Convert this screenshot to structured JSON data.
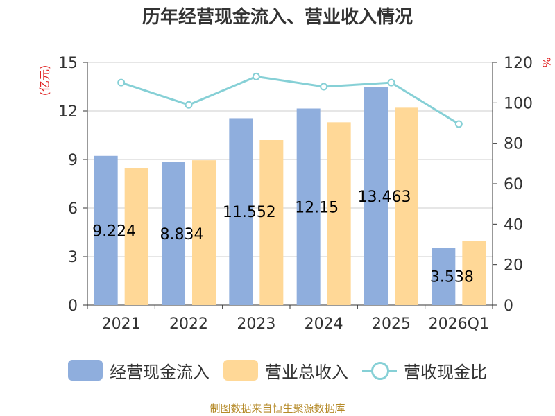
{
  "title": "历年经营现金流入、营业收入情况",
  "source": "制图数据来自恒生聚源数据库",
  "colors": {
    "cash_inflow": "#8faedd",
    "revenue": "#ffd897",
    "ratio_line": "#86d0d6",
    "axis_unit": "#e02020",
    "text": "#333333"
  },
  "chart_data": {
    "type": "bar",
    "categories": [
      "2021",
      "2022",
      "2023",
      "2024",
      "2025",
      "2026Q1"
    ],
    "series": [
      {
        "name": "经营现金流入",
        "type": "bar",
        "axis": "left",
        "values": [
          9.224,
          8.834,
          11.552,
          12.15,
          13.463,
          3.538
        ],
        "labels": [
          "9.224",
          "8.834",
          "11.552",
          "12.15",
          "13.463",
          "3.538"
        ]
      },
      {
        "name": "营业总收入",
        "type": "bar",
        "axis": "left",
        "values": [
          8.45,
          8.95,
          10.2,
          11.3,
          12.2,
          3.95
        ]
      },
      {
        "name": "营收现金比",
        "type": "line",
        "axis": "right",
        "values": [
          110,
          99,
          113,
          108,
          110,
          89.5
        ]
      }
    ],
    "yleft": {
      "unit": "(亿元)",
      "ticks": [
        "0",
        "3",
        "6",
        "9",
        "12",
        "15"
      ],
      "ylim": [
        0,
        15
      ]
    },
    "yright": {
      "unit": "%",
      "ticks": [
        "0",
        "20",
        "40",
        "60",
        "80",
        "100",
        "120"
      ],
      "ylim": [
        0,
        120
      ]
    },
    "grid": true,
    "legend_position": "bottom"
  }
}
